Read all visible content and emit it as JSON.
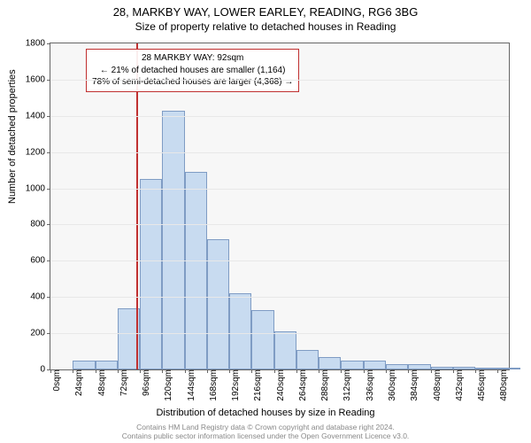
{
  "title": {
    "main": "28, MARKBY WAY, LOWER EARLEY, READING, RG6 3BG",
    "sub": "Size of property relative to detached houses in Reading"
  },
  "chart": {
    "type": "histogram",
    "background_color": "#f7f7f7",
    "border_color": "#666666",
    "bar_fill": "#c8dbf0",
    "bar_stroke": "#7f9cc4",
    "grid_color": "#e8e8e8",
    "marker_color": "#c03030",
    "marker_x": 92,
    "xlim": [
      0,
      492
    ],
    "ylim": [
      0,
      1800
    ],
    "ytick_step": 200,
    "xticks": [
      0,
      24,
      48,
      72,
      96,
      120,
      144,
      168,
      192,
      216,
      240,
      264,
      288,
      312,
      336,
      360,
      384,
      408,
      432,
      456,
      480
    ],
    "xtick_unit": "sqm",
    "ylabel": "Number of detached properties",
    "xlabel": "Distribution of detached houses by size in Reading",
    "bar_width_value": 24,
    "values": [
      0,
      50,
      50,
      340,
      1050,
      1430,
      1090,
      720,
      420,
      330,
      210,
      110,
      70,
      50,
      50,
      30,
      30,
      15,
      15,
      5,
      10
    ]
  },
  "annotation": {
    "line1": "28 MARKBY WAY: 92sqm",
    "line2": "← 21% of detached houses are smaller (1,164)",
    "line3": "78% of semi-detached houses are larger (4,368) →"
  },
  "footer": {
    "line1": "Contains HM Land Registry data © Crown copyright and database right 2024.",
    "line2": "Contains public sector information licensed under the Open Government Licence v3.0."
  }
}
